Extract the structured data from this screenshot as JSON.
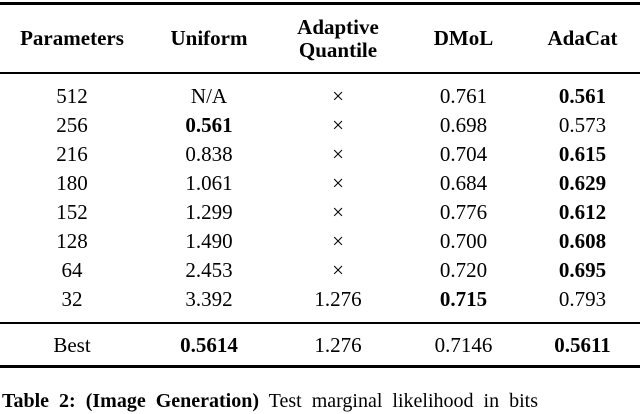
{
  "colors": {
    "text": "#000000",
    "background": "#ffffff",
    "rule": "#000000"
  },
  "table": {
    "header": [
      {
        "id": "parameters",
        "lines": [
          "Parameters"
        ]
      },
      {
        "id": "uniform",
        "lines": [
          "Uniform"
        ]
      },
      {
        "id": "adaptive-quantile",
        "lines": [
          "Adaptive",
          "Quantile"
        ]
      },
      {
        "id": "dmol",
        "lines": [
          "DMoL"
        ]
      },
      {
        "id": "adacat",
        "lines": [
          "AdaCat"
        ]
      }
    ],
    "body_rows": [
      {
        "cells": [
          {
            "t": "512",
            "b": false
          },
          {
            "t": "N/A",
            "b": false
          },
          {
            "t": "×",
            "b": false
          },
          {
            "t": "0.761",
            "b": false
          },
          {
            "t": "0.561",
            "b": true
          }
        ]
      },
      {
        "cells": [
          {
            "t": "256",
            "b": false
          },
          {
            "t": "0.561",
            "b": true
          },
          {
            "t": "×",
            "b": false
          },
          {
            "t": "0.698",
            "b": false
          },
          {
            "t": "0.573",
            "b": false
          }
        ]
      },
      {
        "cells": [
          {
            "t": "216",
            "b": false
          },
          {
            "t": "0.838",
            "b": false
          },
          {
            "t": "×",
            "b": false
          },
          {
            "t": "0.704",
            "b": false
          },
          {
            "t": "0.615",
            "b": true
          }
        ]
      },
      {
        "cells": [
          {
            "t": "180",
            "b": false
          },
          {
            "t": "1.061",
            "b": false
          },
          {
            "t": "×",
            "b": false
          },
          {
            "t": "0.684",
            "b": false
          },
          {
            "t": "0.629",
            "b": true
          }
        ]
      },
      {
        "cells": [
          {
            "t": "152",
            "b": false
          },
          {
            "t": "1.299",
            "b": false
          },
          {
            "t": "×",
            "b": false
          },
          {
            "t": "0.776",
            "b": false
          },
          {
            "t": "0.612",
            "b": true
          }
        ]
      },
      {
        "cells": [
          {
            "t": "128",
            "b": false
          },
          {
            "t": "1.490",
            "b": false
          },
          {
            "t": "×",
            "b": false
          },
          {
            "t": "0.700",
            "b": false
          },
          {
            "t": "0.608",
            "b": true
          }
        ]
      },
      {
        "cells": [
          {
            "t": "64",
            "b": false
          },
          {
            "t": "2.453",
            "b": false
          },
          {
            "t": "×",
            "b": false
          },
          {
            "t": "0.720",
            "b": false
          },
          {
            "t": "0.695",
            "b": true
          }
        ]
      },
      {
        "cells": [
          {
            "t": "32",
            "b": false
          },
          {
            "t": "3.392",
            "b": false
          },
          {
            "t": "1.276",
            "b": false
          },
          {
            "t": "0.715",
            "b": true
          },
          {
            "t": "0.793",
            "b": false
          }
        ]
      }
    ],
    "summary_row": {
      "cells": [
        {
          "t": "Best",
          "b": false
        },
        {
          "t": "0.5614",
          "b": true
        },
        {
          "t": "1.276",
          "b": false
        },
        {
          "t": "0.7146",
          "b": false
        },
        {
          "t": "0.5611",
          "b": true
        }
      ]
    }
  },
  "caption": {
    "prefix": "Table 2: (Image Generation)",
    "rest": " Test marginal likelihood in bits"
  }
}
